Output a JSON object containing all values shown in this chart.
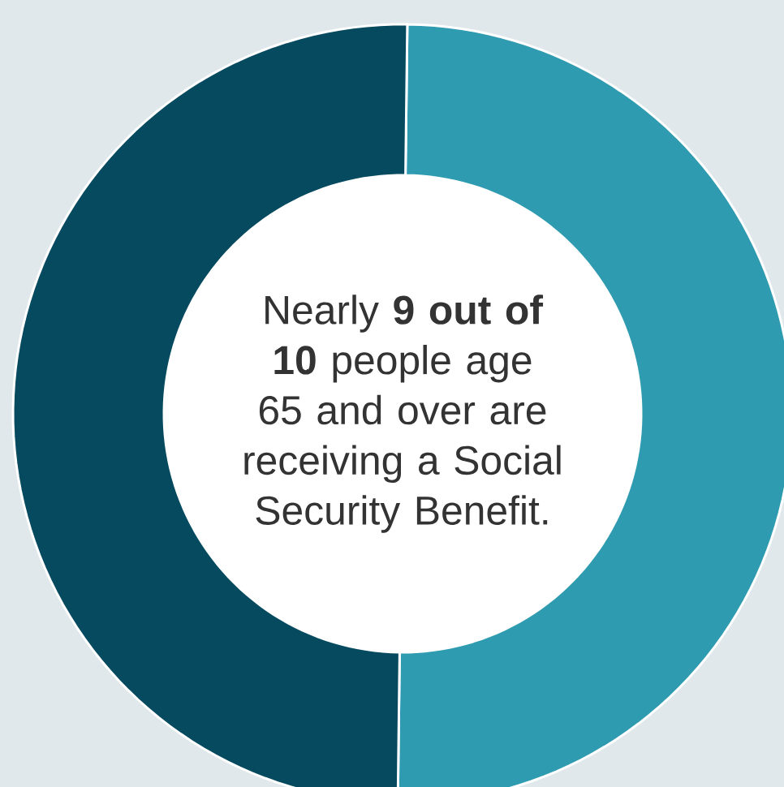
{
  "chart_data": {
    "type": "donut",
    "categories": [
      null,
      null
    ],
    "values": [
      50,
      50
    ],
    "colors": [
      "#2e9bb0",
      "#064a60"
    ],
    "annotations": [
      "Nearly **9 out of 10** people age 65 and over are receiving a Social Security Benefit."
    ]
  }
}
